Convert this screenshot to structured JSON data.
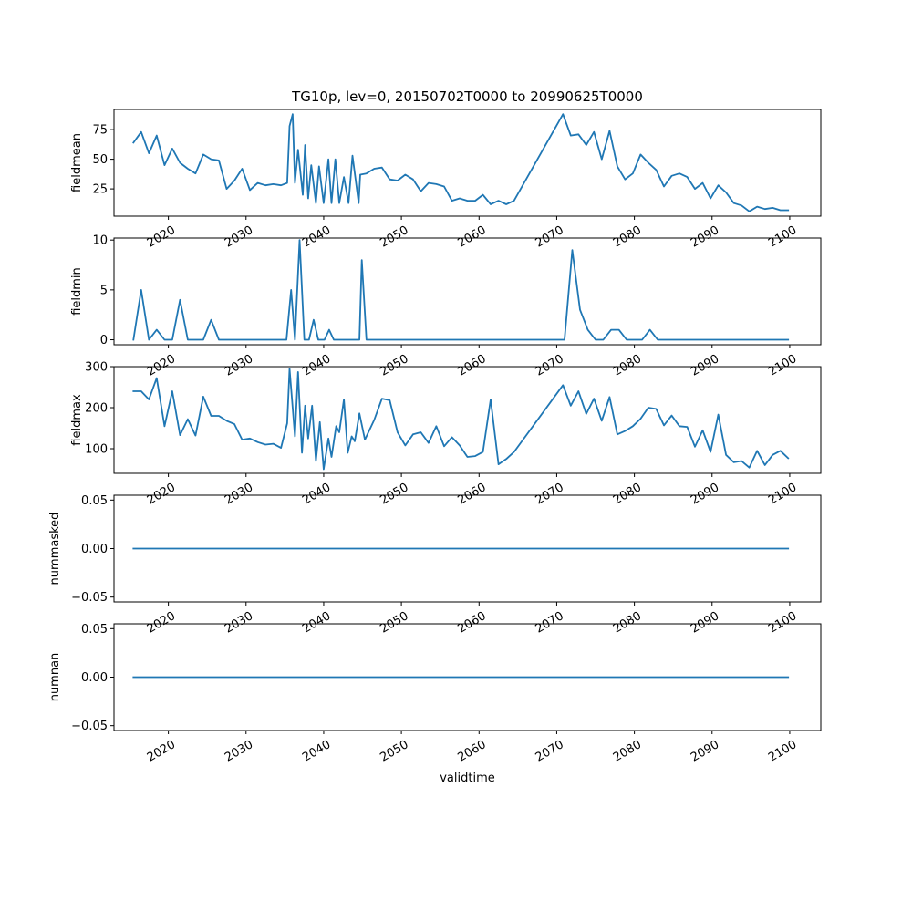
{
  "chart_data": {
    "type": "line",
    "title": "TG10p, lev=0, 20150702T0000 to 20990625T0000",
    "xlabel": "validtime",
    "line_color": "#1f77b4",
    "x_range": [
      2013,
      2104
    ],
    "x_ticks": [
      "2020",
      "2030",
      "2040",
      "2050",
      "2060",
      "2070",
      "2080",
      "2090",
      "2100"
    ],
    "panels": [
      {
        "ylabel": "fieldmean",
        "ylim": [
          2,
          92
        ],
        "yticks": [
          "25",
          "50",
          "75"
        ],
        "x": [
          2015.5,
          2016.5,
          2017.5,
          2018.5,
          2019.5,
          2020.5,
          2021.5,
          2022.5,
          2023.5,
          2024.5,
          2025.5,
          2026.5,
          2027.5,
          2028.5,
          2029.5,
          2030.5,
          2031.5,
          2032.5,
          2033.5,
          2034.5,
          2035.3,
          2035.6,
          2036.0,
          2036.3,
          2036.7,
          2037.3,
          2037.6,
          2038.0,
          2038.4,
          2039.0,
          2039.4,
          2040.0,
          2040.6,
          2041.0,
          2041.5,
          2042.0,
          2042.6,
          2043.2,
          2043.7,
          2044.5,
          2044.7,
          2045.5,
          2046.5,
          2047.5,
          2048.5,
          2049.5,
          2050.5,
          2051.5,
          2052.5,
          2053.5,
          2054.5,
          2055.5,
          2056.5,
          2057.5,
          2058.5,
          2059.5,
          2060.5,
          2061.5,
          2062.5,
          2063.5,
          2064.5,
          2070.8,
          2071.8,
          2072.8,
          2073.8,
          2074.8,
          2075.8,
          2076.8,
          2077.8,
          2078.8,
          2079.8,
          2080.8,
          2081.8,
          2082.8,
          2083.8,
          2084.8,
          2085.8,
          2086.8,
          2087.8,
          2088.8,
          2089.8,
          2090.8,
          2091.8,
          2092.8,
          2093.8,
          2094.8,
          2095.8,
          2096.8,
          2097.8,
          2098.8,
          2099.8
        ],
        "y": [
          64,
          73,
          55,
          70,
          45,
          59,
          47,
          42,
          38,
          54,
          50,
          49,
          25,
          32,
          42,
          24,
          30,
          28,
          29,
          28,
          30,
          78,
          88,
          30,
          58,
          20,
          62,
          17,
          45,
          13,
          44,
          13,
          50,
          13,
          50,
          13,
          35,
          13,
          53,
          13,
          37,
          38,
          42,
          43,
          33,
          32,
          37,
          33,
          23,
          30,
          29,
          27,
          15,
          17,
          15,
          15,
          20,
          12,
          15,
          12,
          15,
          88,
          70,
          71,
          62,
          73,
          50,
          74,
          44,
          33,
          38,
          54,
          47,
          41,
          27,
          36,
          38,
          35,
          25,
          30,
          17,
          28,
          22,
          13,
          11,
          6,
          10,
          8,
          9,
          7,
          7
        ]
      },
      {
        "ylabel": "fieldmin",
        "ylim": [
          -0.5,
          10.2
        ],
        "yticks": [
          "0",
          "5",
          "10"
        ],
        "x": [
          2015.5,
          2016.5,
          2017.5,
          2018.5,
          2019.5,
          2020.5,
          2021.5,
          2022.5,
          2023.5,
          2024.5,
          2025.5,
          2026.5,
          2035.2,
          2035.8,
          2036.3,
          2036.9,
          2037.5,
          2038.1,
          2038.7,
          2039.3,
          2040.1,
          2040.7,
          2041.3,
          2044.6,
          2044.9,
          2045.5,
          2071.0,
          2072.0,
          2073.0,
          2074.0,
          2075.0,
          2076.0,
          2077.0,
          2078.0,
          2079.0,
          2080.0,
          2081.0,
          2082.0,
          2083.0,
          2099.8
        ],
        "y": [
          0,
          5,
          0,
          1,
          0,
          0,
          4,
          0,
          0,
          0,
          2,
          0,
          0,
          5,
          0,
          10,
          0,
          0,
          2,
          0,
          0,
          1,
          0,
          0,
          8,
          0,
          0,
          9,
          3,
          1,
          0,
          0,
          1,
          1,
          0,
          0,
          0,
          1,
          0,
          0
        ]
      },
      {
        "ylabel": "fieldmax",
        "ylim": [
          40,
          300
        ],
        "yticks": [
          "100",
          "200",
          "300"
        ],
        "x": [
          2015.5,
          2016.5,
          2017.5,
          2018.5,
          2019.5,
          2020.5,
          2021.5,
          2022.5,
          2023.5,
          2024.5,
          2025.5,
          2026.5,
          2027.5,
          2028.5,
          2029.5,
          2030.5,
          2031.5,
          2032.5,
          2033.5,
          2034.5,
          2035.3,
          2035.6,
          2036.3,
          2036.7,
          2037.2,
          2037.6,
          2038.0,
          2038.5,
          2039.0,
          2039.5,
          2040.0,
          2040.6,
          2041.0,
          2041.6,
          2042.0,
          2042.6,
          2043.1,
          2043.6,
          2044.0,
          2044.6,
          2045.3,
          2046.5,
          2047.5,
          2048.5,
          2049.5,
          2050.5,
          2051.5,
          2052.5,
          2053.5,
          2054.5,
          2055.5,
          2056.5,
          2057.5,
          2058.5,
          2059.5,
          2060.5,
          2061.5,
          2062.5,
          2063.5,
          2064.5,
          2070.8,
          2071.8,
          2072.8,
          2073.8,
          2074.8,
          2075.8,
          2076.8,
          2077.8,
          2078.8,
          2079.8,
          2080.8,
          2081.8,
          2082.8,
          2083.8,
          2084.8,
          2085.8,
          2086.8,
          2087.8,
          2088.8,
          2089.8,
          2090.8,
          2091.8,
          2092.8,
          2093.8,
          2094.8,
          2095.8,
          2096.8,
          2097.8,
          2098.8,
          2099.8
        ],
        "y": [
          240,
          240,
          220,
          272,
          155,
          240,
          133,
          172,
          132,
          227,
          180,
          180,
          168,
          160,
          122,
          125,
          116,
          110,
          112,
          102,
          162,
          295,
          130,
          287,
          90,
          205,
          125,
          205,
          70,
          165,
          50,
          125,
          80,
          155,
          140,
          220,
          90,
          130,
          118,
          186,
          122,
          170,
          222,
          218,
          140,
          108,
          135,
          140,
          114,
          155,
          106,
          128,
          108,
          80,
          82,
          92,
          220,
          62,
          75,
          92,
          255,
          205,
          240,
          185,
          222,
          168,
          226,
          135,
          143,
          155,
          173,
          200,
          197,
          157,
          181,
          155,
          153,
          105,
          145,
          92,
          183,
          85,
          67,
          70,
          54,
          95,
          60,
          85,
          95,
          77
        ]
      },
      {
        "ylabel": "nummasked",
        "ylim": [
          -0.055,
          0.055
        ],
        "yticks": [
          "−0.05",
          "0.00",
          "0.05"
        ],
        "x": [
          2015.5,
          2099.8
        ],
        "y": [
          0,
          0
        ]
      },
      {
        "ylabel": "numnan",
        "ylim": [
          -0.055,
          0.055
        ],
        "yticks": [
          "−0.05",
          "0.00",
          "0.05"
        ],
        "x": [
          2015.5,
          2099.8
        ],
        "y": [
          0,
          0
        ]
      }
    ]
  }
}
